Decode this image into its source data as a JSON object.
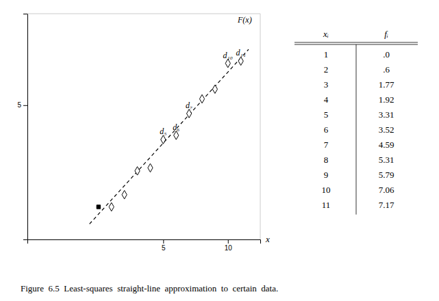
{
  "chart_data": {
    "type": "scatter",
    "caption": "Figure  6.5  Least-squares  straight-line  approximation  to  certain  data.",
    "x_label": "x",
    "series": [
      {
        "type": "scatter",
        "marker": "diamond-open",
        "color": "#000000",
        "x": [
          1,
          2,
          3,
          4,
          5,
          6,
          7,
          8,
          9,
          10,
          11
        ],
        "values": [
          0.0,
          0.6,
          1.77,
          1.92,
          3.31,
          3.52,
          4.59,
          5.31,
          5.79,
          7.06,
          7.17
        ],
        "value_labels": [
          ".0",
          ".6",
          "1.77",
          "1.92",
          "3.31",
          "3.52",
          "4.59",
          "5.31",
          "5.79",
          "7.06",
          "7.17"
        ]
      },
      {
        "type": "line",
        "line_style": "dashed",
        "color": "#000000",
        "x": [
          -0.7,
          11.6
        ],
        "values": [
          -0.84144,
          7.74642
        ]
      },
      {
        "type": "scatter",
        "marker": "square",
        "color": "#000000",
        "x": [
          0
        ],
        "values": [
          0
        ]
      }
    ],
    "annotations": [
      {
        "text": "F(x)",
        "x": 11.3,
        "y": 8.8
      },
      {
        "text": "d₅",
        "x": 5,
        "y": 3.31
      },
      {
        "text": "d₆",
        "x": 6,
        "y": 3.52
      },
      {
        "text": "d₇",
        "x": 7,
        "y": 4.59
      },
      {
        "text": "d₁₀",
        "x": 10,
        "y": 7.06
      },
      {
        "text": "d₁₁",
        "x": 11,
        "y": 7.17
      }
    ],
    "table": {
      "headers": [
        "xᵢ",
        "fᵢ"
      ]
    },
    "xlim": [
      -5.5,
      12.5
    ],
    "ylim": [
      -1.6,
      9.5
    ],
    "xticks": [
      5,
      10
    ],
    "yticks": [
      5
    ],
    "grid": false
  }
}
